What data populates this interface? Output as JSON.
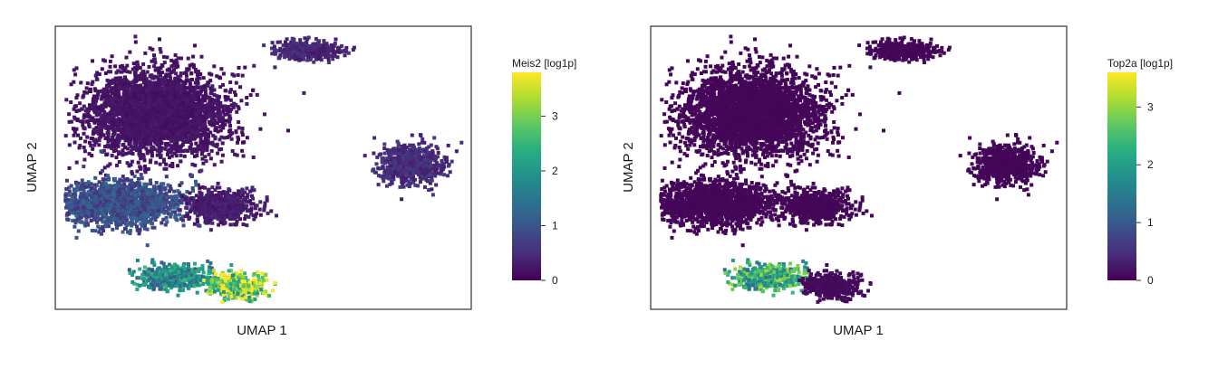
{
  "chart_data": [
    {
      "type": "heatmap",
      "xlabel": "UMAP 1",
      "ylabel": "UMAP 2",
      "colorbar": {
        "title": "Meis2 [log1p]",
        "range": [
          0,
          3.8
        ],
        "ticks": [
          0,
          1,
          2,
          3
        ],
        "tick_labels": [
          "0",
          "1",
          "2",
          "3"
        ],
        "colormap": [
          "#440154",
          "#472d7b",
          "#3b528b",
          "#2c728e",
          "#21918c",
          "#28ae80",
          "#5ec962",
          "#addc30",
          "#fde725"
        ]
      },
      "clusters": [
        {
          "center": [
            0.24,
            0.3
          ],
          "spread": [
            0.15,
            0.14
          ],
          "level": 0.2
        },
        {
          "center": [
            0.6,
            0.08
          ],
          "spread": [
            0.07,
            0.03
          ],
          "level": 0.4
        },
        {
          "center": [
            0.85,
            0.48
          ],
          "spread": [
            0.07,
            0.06
          ],
          "level": 0.5
        },
        {
          "center": [
            0.15,
            0.62
          ],
          "spread": [
            0.14,
            0.07
          ],
          "level": 0.9
        },
        {
          "center": [
            0.4,
            0.63
          ],
          "spread": [
            0.07,
            0.05
          ],
          "level": 0.3
        },
        {
          "center": [
            0.28,
            0.88
          ],
          "spread": [
            0.07,
            0.04
          ],
          "level": 1.8
        },
        {
          "center": [
            0.43,
            0.91
          ],
          "spread": [
            0.06,
            0.04
          ],
          "level": 3.2
        }
      ]
    },
    {
      "type": "heatmap",
      "xlabel": "UMAP 1",
      "ylabel": "UMAP 2",
      "colorbar": {
        "title": "Top2a [log1p]",
        "range": [
          0,
          3.6
        ],
        "ticks": [
          0,
          1,
          2,
          3
        ],
        "tick_labels": [
          "0",
          "1",
          "2",
          "3"
        ],
        "colormap": [
          "#440154",
          "#472d7b",
          "#3b528b",
          "#2c728e",
          "#21918c",
          "#28ae80",
          "#5ec962",
          "#addc30",
          "#fde725"
        ]
      },
      "clusters": [
        {
          "center": [
            0.24,
            0.3
          ],
          "spread": [
            0.15,
            0.14
          ],
          "level": 0.05
        },
        {
          "center": [
            0.6,
            0.08
          ],
          "spread": [
            0.07,
            0.03
          ],
          "level": 0.05
        },
        {
          "center": [
            0.85,
            0.48
          ],
          "spread": [
            0.07,
            0.06
          ],
          "level": 0.05
        },
        {
          "center": [
            0.15,
            0.62
          ],
          "spread": [
            0.14,
            0.07
          ],
          "level": 0.05
        },
        {
          "center": [
            0.4,
            0.63
          ],
          "spread": [
            0.07,
            0.05
          ],
          "level": 0.05
        },
        {
          "center": [
            0.28,
            0.88
          ],
          "spread": [
            0.07,
            0.04
          ],
          "level": 2.2
        },
        {
          "center": [
            0.43,
            0.91
          ],
          "spread": [
            0.06,
            0.04
          ],
          "level": 0.1
        }
      ]
    }
  ]
}
